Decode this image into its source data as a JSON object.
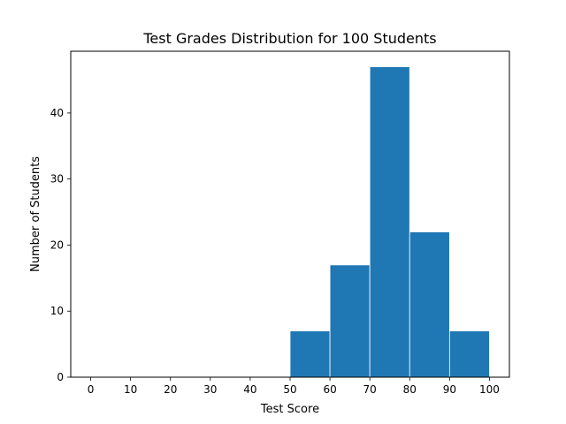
{
  "chart_data": {
    "type": "bar",
    "title": "Test Grades Distribution for 100 Students",
    "xlabel": "Test Score",
    "ylabel": "Number of Students",
    "bins": [
      {
        "start": 50,
        "end": 60,
        "value": 7
      },
      {
        "start": 60,
        "end": 70,
        "value": 17
      },
      {
        "start": 70,
        "end": 80,
        "value": 47
      },
      {
        "start": 80,
        "end": 90,
        "value": 22
      },
      {
        "start": 90,
        "end": 100,
        "value": 7
      }
    ],
    "xticks": [
      0,
      10,
      20,
      30,
      40,
      50,
      60,
      70,
      80,
      90,
      100
    ],
    "yticks": [
      0,
      10,
      20,
      30,
      40
    ],
    "xlim": [
      -5,
      105
    ],
    "ylim": [
      0,
      49.35
    ],
    "grid": false,
    "colors": {
      "bar": "#1f77b4",
      "bar_edge": "#ffffff"
    }
  }
}
